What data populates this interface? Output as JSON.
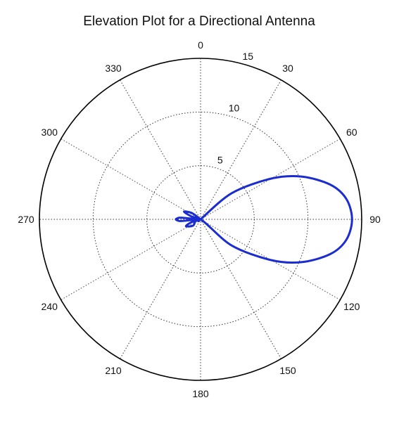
{
  "chart_data": {
    "type": "polar-line",
    "title": "Elevation Plot for a Directional Antenna",
    "angle_ticks": [
      0,
      30,
      60,
      90,
      120,
      150,
      180,
      210,
      240,
      270,
      300,
      330
    ],
    "radial_ticks": [
      5,
      10,
      15
    ],
    "radial_limit": 15,
    "angle_direction": "clockwise from top",
    "grid": true,
    "series": [
      {
        "color": "#1b2dcf",
        "points": [
          [
            0,
            0
          ],
          [
            50,
            3.8
          ],
          [
            60,
            7.6
          ],
          [
            67,
            10.2
          ],
          [
            75,
            12.5
          ],
          [
            82,
            13.7
          ],
          [
            90,
            14.1
          ],
          [
            98,
            13.7
          ],
          [
            105,
            12.5
          ],
          [
            113,
            10.2
          ],
          [
            120,
            7.6
          ],
          [
            130,
            3.8
          ],
          [
            180,
            0
          ],
          [
            230,
            0.9
          ],
          [
            245,
            1.5
          ],
          [
            252,
            0.9
          ],
          [
            260,
            0
          ],
          [
            265,
            1.8
          ],
          [
            268,
            2.2
          ],
          [
            270,
            2.3
          ],
          [
            272,
            2.2
          ],
          [
            275,
            1.8
          ],
          [
            280,
            0
          ],
          [
            288,
            0.9
          ],
          [
            295,
            1.7
          ],
          [
            306,
            1.0
          ],
          [
            340,
            0
          ],
          [
            360,
            0
          ]
        ]
      }
    ]
  }
}
